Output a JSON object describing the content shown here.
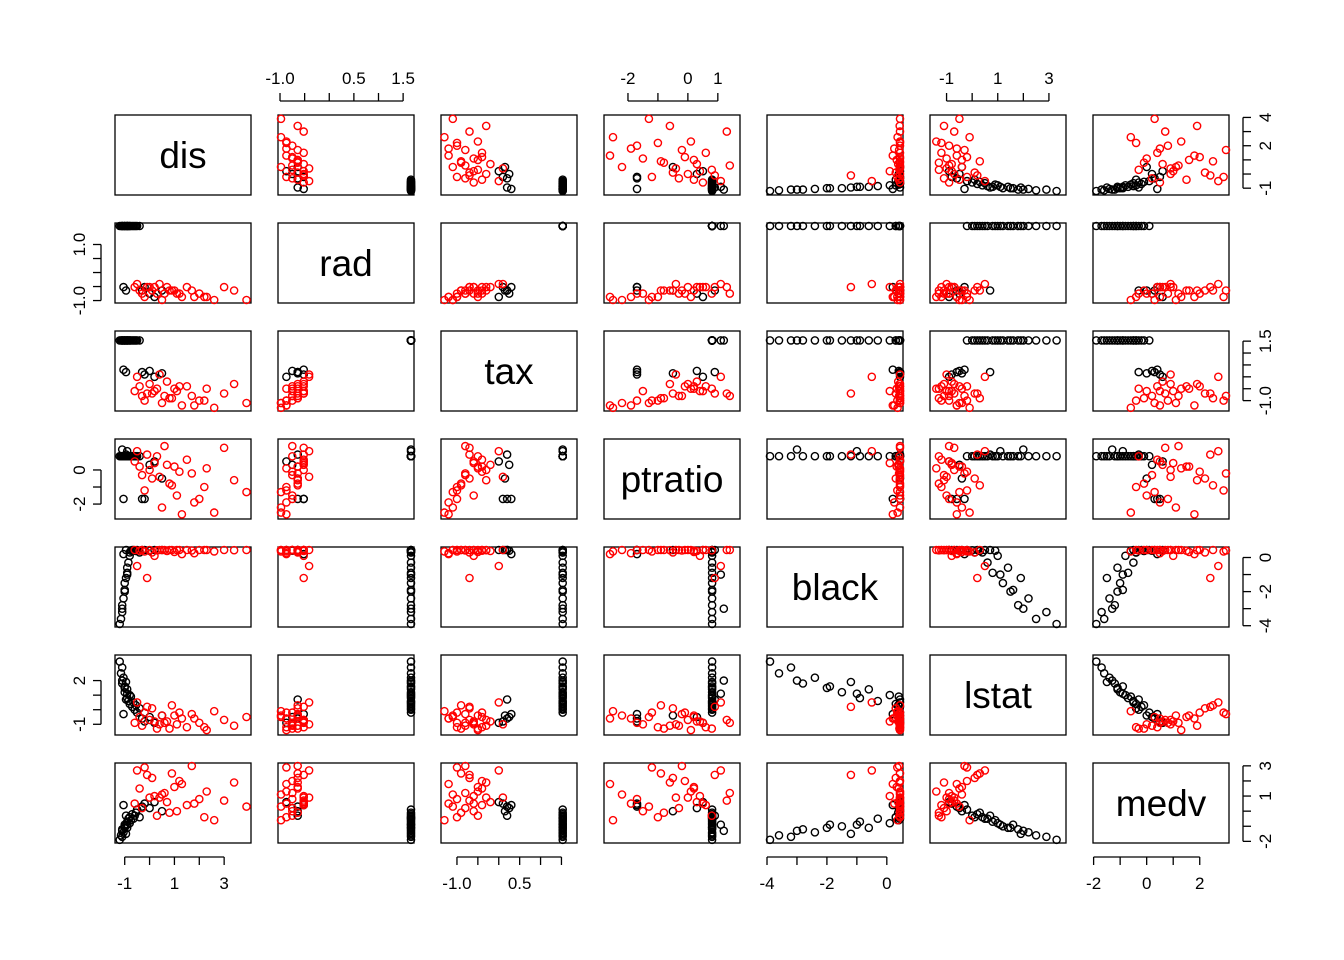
{
  "chart_data": {
    "type": "scatter",
    "chart_kind": "scatterplot-matrix",
    "variables": [
      "dis",
      "rad",
      "tax",
      "ptratio",
      "black",
      "lstat",
      "medv"
    ],
    "groups": [
      {
        "color": "#000000"
      },
      {
        "color": "#ff0000"
      }
    ],
    "ranges": {
      "dis": [
        -1.27,
        3.96
      ],
      "rad": [
        -0.98,
        1.66
      ],
      "tax": [
        -1.31,
        1.8
      ],
      "ptratio": [
        -2.7,
        1.64
      ],
      "black": [
        -3.9,
        0.44
      ],
      "lstat": [
        -1.53,
        3.55
      ],
      "medv": [
        -1.91,
        2.99
      ]
    },
    "axes": {
      "top": [
        {
          "variable": "rad",
          "ticks": [
            -1.0,
            -0.5,
            0.0,
            0.5,
            1.0,
            1.5
          ],
          "labels": [
            "-1.0",
            "",
            "",
            "0.5",
            "",
            "1.5"
          ]
        },
        {
          "variable": "ptratio",
          "ticks": [
            -2,
            -1,
            0,
            1
          ],
          "labels": [
            "-2",
            "",
            "0",
            "1"
          ]
        },
        {
          "variable": "lstat",
          "ticks": [
            -1,
            0,
            1,
            2,
            3
          ],
          "labels": [
            "-1",
            "",
            "1",
            "",
            "3"
          ]
        }
      ],
      "bottom": [
        {
          "variable": "dis",
          "ticks": [
            -1,
            0,
            1,
            2,
            3
          ],
          "labels": [
            "-1",
            "",
            "1",
            "",
            "3"
          ]
        },
        {
          "variable": "tax",
          "ticks": [
            -1.0,
            -0.5,
            0.0,
            0.5,
            1.0,
            1.5
          ],
          "labels": [
            "-1.0",
            "",
            "",
            "0.5",
            "",
            ""
          ]
        },
        {
          "variable": "black",
          "ticks": [
            -4,
            -3,
            -2,
            -1,
            0
          ],
          "labels": [
            "-4",
            "",
            "-2",
            "",
            "0"
          ]
        },
        {
          "variable": "medv",
          "ticks": [
            -2,
            -1,
            0,
            1,
            2
          ],
          "labels": [
            "-2",
            "",
            "0",
            "",
            "2"
          ]
        }
      ],
      "left": [
        {
          "variable": "rad",
          "ticks": [
            -1.0,
            -0.5,
            0.0,
            0.5,
            1.0
          ],
          "labels": [
            "-1.0",
            "",
            "",
            "",
            "1.0"
          ]
        },
        {
          "variable": "ptratio",
          "ticks": [
            -2,
            -1,
            0
          ],
          "labels": [
            "-2",
            "",
            "0"
          ]
        },
        {
          "variable": "lstat",
          "ticks": [
            -1,
            0,
            1,
            2
          ],
          "labels": [
            "-1",
            "",
            "",
            "2"
          ]
        }
      ],
      "right": [
        {
          "variable": "dis",
          "ticks": [
            -1,
            0,
            1,
            2,
            3,
            4
          ],
          "labels": [
            "-1",
            "",
            "",
            "2",
            "",
            "4"
          ]
        },
        {
          "variable": "tax",
          "ticks": [
            -1.0,
            -0.5,
            0.0,
            0.5,
            1.0,
            1.5
          ],
          "labels": [
            "-1.0",
            "",
            "",
            "",
            "",
            "1.5"
          ]
        },
        {
          "variable": "black",
          "ticks": [
            -4,
            -3,
            -2,
            -1,
            0
          ],
          "labels": [
            "-4",
            "",
            "-2",
            "",
            "0"
          ]
        },
        {
          "variable": "medv",
          "ticks": [
            -2,
            -1,
            0,
            1,
            2,
            3
          ],
          "labels": [
            "-2",
            "",
            "",
            "1",
            "",
            "3"
          ]
        }
      ]
    },
    "grid": false,
    "legend": "none",
    "points_approx": {
      "black": {
        "dis": [
          -1.2,
          -1.15,
          -1.1,
          -1.1,
          -1.05,
          -1.0,
          -1.0,
          -0.95,
          -0.9,
          -0.9,
          -0.85,
          -0.8,
          -0.8,
          -0.75,
          -0.7,
          -0.65,
          -0.6,
          -0.55,
          -0.5,
          -0.4,
          -0.3,
          -0.2,
          0.0,
          0.2,
          0.5,
          -1.1,
          -1.0,
          -0.9,
          -1.05,
          -0.95
        ],
        "rad": [
          1.66,
          1.66,
          1.66,
          1.66,
          1.66,
          1.66,
          1.66,
          1.66,
          1.66,
          1.66,
          1.66,
          1.66,
          1.66,
          1.66,
          1.66,
          1.66,
          1.66,
          1.66,
          1.66,
          1.66,
          -0.64,
          -0.52,
          -0.75,
          -0.87,
          -0.64,
          1.66,
          1.66,
          1.66,
          -0.52,
          -0.64
        ],
        "tax": [
          1.53,
          1.53,
          1.53,
          1.53,
          1.53,
          1.53,
          1.53,
          1.53,
          1.53,
          1.53,
          1.53,
          1.53,
          1.53,
          1.53,
          1.53,
          1.53,
          1.53,
          1.53,
          1.53,
          1.53,
          0.2,
          0.1,
          0.25,
          0.0,
          0.15,
          1.53,
          1.53,
          1.53,
          0.3,
          0.2
        ],
        "ptratio": [
          0.81,
          0.81,
          0.81,
          0.81,
          0.81,
          0.81,
          0.81,
          0.81,
          0.81,
          0.81,
          0.81,
          0.81,
          0.81,
          0.81,
          0.81,
          0.81,
          0.81,
          0.81,
          0.81,
          0.81,
          -1.7,
          -1.7,
          0.3,
          0.5,
          -0.5,
          1.2,
          0.81,
          1.1,
          -1.7,
          0.9
        ],
        "black": [
          -3.9,
          -3.6,
          -3.2,
          -2.8,
          -2.4,
          -1.9,
          -1.5,
          -1.2,
          -0.9,
          -0.6,
          -0.3,
          0.1,
          0.3,
          0.4,
          0.44,
          0.44,
          0.42,
          0.38,
          0.44,
          0.3,
          0.44,
          0.44,
          0.4,
          0.44,
          0.44,
          -3.0,
          -2.0,
          -1.0,
          0.2,
          0.44
        ],
        "lstat": [
          3.3,
          2.5,
          2.9,
          1.8,
          2.2,
          1.6,
          1.2,
          1.9,
          0.8,
          1.4,
          0.6,
          1.0,
          0.4,
          0.9,
          0.2,
          0.5,
          0.0,
          0.3,
          -0.2,
          0.1,
          -0.6,
          -0.8,
          -0.5,
          -0.9,
          -0.4,
          2.0,
          1.5,
          1.1,
          -0.3,
          0.7
        ],
        "medv": [
          -1.9,
          -1.6,
          -1.7,
          -1.2,
          -1.4,
          -0.9,
          -1.0,
          -1.5,
          -0.7,
          -1.1,
          -0.5,
          -0.8,
          -0.4,
          -0.6,
          -0.2,
          -0.5,
          -0.3,
          -0.1,
          0.1,
          -0.4,
          0.3,
          0.5,
          0.2,
          0.6,
          0.0,
          -1.3,
          -1.1,
          -0.9,
          0.4,
          -0.3
        ]
      },
      "red": {
        "dis": [
          -0.6,
          -0.4,
          -0.3,
          -0.2,
          0.0,
          0.1,
          0.3,
          0.5,
          0.7,
          0.9,
          1.1,
          1.3,
          1.5,
          1.7,
          2.0,
          2.3,
          2.6,
          3.0,
          3.4,
          3.9,
          -0.5,
          0.2,
          0.8,
          1.2,
          1.8,
          -0.1,
          0.4,
          1.0,
          2.2,
          0.6
        ],
        "rad": [
          -0.52,
          -0.64,
          -0.75,
          -0.87,
          -0.52,
          -0.64,
          -0.75,
          -0.98,
          -0.52,
          -0.64,
          -0.75,
          -0.87,
          -0.52,
          -0.64,
          -0.75,
          -0.87,
          -0.98,
          -0.52,
          -0.64,
          -0.98,
          -0.41,
          -0.52,
          -0.64,
          -0.75,
          -0.87,
          -0.52,
          -0.41,
          -0.64,
          -0.87,
          -0.75
        ],
        "tax": [
          -0.6,
          -0.4,
          -0.8,
          -1.0,
          -0.3,
          -0.7,
          -0.5,
          -1.1,
          -0.2,
          -0.9,
          -0.6,
          -1.2,
          -0.4,
          -0.8,
          -1.0,
          -0.5,
          -1.3,
          -0.7,
          -0.3,
          -1.1,
          0.0,
          -0.6,
          -0.9,
          -0.4,
          -1.2,
          -0.7,
          0.1,
          -0.5,
          -1.0,
          -0.8
        ],
        "ptratio": [
          0.5,
          0.2,
          -0.3,
          -1.2,
          0.0,
          -0.5,
          0.8,
          -2.2,
          0.3,
          -0.9,
          -1.5,
          -2.6,
          0.6,
          -0.2,
          -1.7,
          0.1,
          -2.5,
          1.3,
          -0.6,
          -1.3,
          1.1,
          0.4,
          -0.8,
          -0.1,
          -1.9,
          0.9,
          -0.4,
          0.2,
          -1.0,
          1.4
        ],
        "black": [
          0.44,
          0.4,
          0.44,
          0.35,
          0.44,
          0.3,
          0.42,
          0.44,
          0.38,
          0.44,
          0.44,
          0.2,
          0.44,
          0.41,
          0.44,
          0.44,
          0.36,
          0.44,
          0.43,
          0.44,
          -0.5,
          0.1,
          0.44,
          0.44,
          0.25,
          -1.2,
          0.44,
          0.33,
          0.44,
          0.44
        ],
        "lstat": [
          -0.9,
          -0.5,
          -1.1,
          -0.2,
          -0.7,
          0.1,
          -1.3,
          -0.4,
          -0.8,
          0.3,
          -1.0,
          -0.6,
          -1.2,
          -0.3,
          -0.9,
          -1.4,
          -0.1,
          -0.7,
          -1.1,
          -0.5,
          0.5,
          -0.8,
          -1.3,
          -0.2,
          -0.6,
          0.2,
          -1.0,
          -0.4,
          -1.2,
          -0.9
        ],
        "medv": [
          0.5,
          1.5,
          0.2,
          2.9,
          0.9,
          2.2,
          -0.3,
          1.1,
          0.6,
          2.5,
          0.0,
          1.8,
          0.4,
          2.99,
          0.8,
          1.3,
          -0.6,
          0.7,
          1.9,
          0.3,
          2.7,
          1.0,
          -0.1,
          2.0,
          0.5,
          2.4,
          0.9,
          1.6,
          -0.4,
          1.2
        ]
      }
    }
  }
}
